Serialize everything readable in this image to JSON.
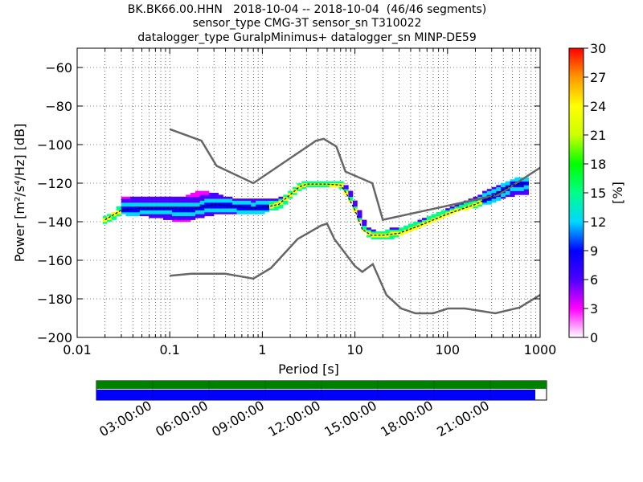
{
  "title_lines": [
    "BK.BK66.00.HHN   2018-10-04 -- 2018-10-04  (46/46 segments)",
    "sensor_type CMG-3T sensor_sn T310022",
    "datalogger_type GuralpMinimus+ datalogger_sn MINP-DE59"
  ],
  "chart_data": {
    "type": "heatmap",
    "xlabel": "Period [s]",
    "ylabel": "Power [m²/s⁴/Hz] [dB]",
    "xscale": "log",
    "xlim": [
      0.01,
      1000
    ],
    "ylim": [
      -200,
      -50
    ],
    "xticks": [
      {
        "value": 0.01,
        "label": "0.01"
      },
      {
        "value": 0.1,
        "label": "0.1"
      },
      {
        "value": 1,
        "label": "1"
      },
      {
        "value": 10,
        "label": "10"
      },
      {
        "value": 100,
        "label": "100"
      },
      {
        "value": 1000,
        "label": "1000"
      }
    ],
    "yticks": [
      {
        "value": -60,
        "label": "−60"
      },
      {
        "value": -80,
        "label": "−80"
      },
      {
        "value": -100,
        "label": "−100"
      },
      {
        "value": -120,
        "label": "−120"
      },
      {
        "value": -140,
        "label": "−140"
      },
      {
        "value": -160,
        "label": "−160"
      },
      {
        "value": -180,
        "label": "−180"
      },
      {
        "value": -200,
        "label": "−200"
      }
    ],
    "grid": true,
    "colorbar": {
      "label": "[%]",
      "range": [
        0,
        30
      ],
      "ticks": [
        0,
        3,
        6,
        9,
        12,
        15,
        18,
        21,
        24,
        27,
        30
      ],
      "colors": [
        "#ffffff",
        "#ff00ff",
        "#4b00ff",
        "#0000ff",
        "#00d8ff",
        "#00ff88",
        "#00ff00",
        "#ccff00",
        "#ffff00",
        "#ff9900",
        "#ff0000"
      ]
    },
    "noise_model_color": "#666666",
    "high_noise_model": [
      [
        0.1,
        -92
      ],
      [
        0.22,
        -98
      ],
      [
        0.32,
        -111
      ],
      [
        0.8,
        -120
      ],
      [
        3.8,
        -98
      ],
      [
        4.6,
        -97
      ],
      [
        6.3,
        -101
      ],
      [
        7.9,
        -114
      ],
      [
        15.4,
        -120
      ],
      [
        20,
        -139
      ],
      [
        354.8,
        -126
      ],
      [
        1000,
        -112
      ]
    ],
    "low_noise_model": [
      [
        0.1,
        -168
      ],
      [
        0.17,
        -167
      ],
      [
        0.4,
        -167
      ],
      [
        0.8,
        -169.5
      ],
      [
        1.24,
        -164
      ],
      [
        2.4,
        -149
      ],
      [
        4.3,
        -142
      ],
      [
        5,
        -141
      ],
      [
        6,
        -149
      ],
      [
        10,
        -163
      ],
      [
        12,
        -166
      ],
      [
        15.6,
        -162
      ],
      [
        21.9,
        -178
      ],
      [
        31.6,
        -185
      ],
      [
        45,
        -187.5
      ],
      [
        70,
        -187.5
      ],
      [
        101,
        -185
      ],
      [
        154,
        -185
      ],
      [
        328,
        -187.5
      ],
      [
        600,
        -184.5
      ],
      [
        1000,
        -178
      ]
    ],
    "mode_curve": [
      [
        0.02,
        -139
      ],
      [
        0.03,
        -134
      ],
      [
        0.05,
        -133
      ],
      [
        0.1,
        -133
      ],
      [
        0.15,
        -133.5
      ],
      [
        0.2,
        -133
      ],
      [
        0.3,
        -131
      ],
      [
        0.5,
        -132
      ],
      [
        0.8,
        -133
      ],
      [
        1.2,
        -132
      ],
      [
        1.5,
        -131
      ],
      [
        2,
        -126
      ],
      [
        2.5,
        -122
      ],
      [
        3,
        -120.5
      ],
      [
        5,
        -120.5
      ],
      [
        7,
        -121
      ],
      [
        8,
        -125
      ],
      [
        10,
        -134
      ],
      [
        12,
        -144
      ],
      [
        15,
        -147
      ],
      [
        20,
        -147
      ],
      [
        30,
        -146
      ],
      [
        50,
        -142
      ],
      [
        100,
        -136
      ],
      [
        200,
        -131
      ],
      [
        300,
        -127
      ],
      [
        500,
        -121
      ],
      [
        700,
        -120
      ]
    ],
    "psd_bands": [
      {
        "x": 0.02,
        "min": -141,
        "max": -137
      },
      {
        "x": 0.022,
        "min": -140,
        "max": -136
      },
      {
        "x": 0.025,
        "min": -139,
        "max": -135
      },
      {
        "x": 0.028,
        "min": -137,
        "max": -132
      },
      {
        "x": 0.032,
        "min": -136,
        "max": -127
      },
      {
        "x": 0.035,
        "min": -137,
        "max": -127
      },
      {
        "x": 0.04,
        "min": -137,
        "max": -127
      },
      {
        "x": 0.045,
        "min": -137,
        "max": -127
      },
      {
        "x": 0.05,
        "min": -137,
        "max": -127
      },
      {
        "x": 0.056,
        "min": -137,
        "max": -127
      },
      {
        "x": 0.063,
        "min": -138,
        "max": -127
      },
      {
        "x": 0.071,
        "min": -138,
        "max": -127
      },
      {
        "x": 0.08,
        "min": -138,
        "max": -127
      },
      {
        "x": 0.09,
        "min": -139,
        "max": -127
      },
      {
        "x": 0.1,
        "min": -139,
        "max": -127
      },
      {
        "x": 0.112,
        "min": -140,
        "max": -127
      },
      {
        "x": 0.126,
        "min": -140,
        "max": -127
      },
      {
        "x": 0.141,
        "min": -140,
        "max": -127
      },
      {
        "x": 0.158,
        "min": -140,
        "max": -126
      },
      {
        "x": 0.178,
        "min": -139,
        "max": -125
      },
      {
        "x": 0.2,
        "min": -138,
        "max": -124
      },
      {
        "x": 0.224,
        "min": -138,
        "max": -124
      },
      {
        "x": 0.25,
        "min": -137,
        "max": -124
      },
      {
        "x": 0.282,
        "min": -137,
        "max": -125
      },
      {
        "x": 0.316,
        "min": -136,
        "max": -125
      },
      {
        "x": 0.355,
        "min": -136,
        "max": -126
      },
      {
        "x": 0.4,
        "min": -136,
        "max": -127
      },
      {
        "x": 0.45,
        "min": -136,
        "max": -127
      },
      {
        "x": 0.5,
        "min": -136,
        "max": -128
      },
      {
        "x": 0.56,
        "min": -136,
        "max": -128
      },
      {
        "x": 0.63,
        "min": -136,
        "max": -128
      },
      {
        "x": 0.71,
        "min": -136,
        "max": -128
      },
      {
        "x": 0.8,
        "min": -136,
        "max": -128
      },
      {
        "x": 0.9,
        "min": -136,
        "max": -128
      },
      {
        "x": 1.0,
        "min": -136,
        "max": -128
      },
      {
        "x": 1.12,
        "min": -135,
        "max": -128
      },
      {
        "x": 1.26,
        "min": -134,
        "max": -128
      },
      {
        "x": 1.41,
        "min": -134,
        "max": -128
      },
      {
        "x": 1.58,
        "min": -133,
        "max": -127
      },
      {
        "x": 1.78,
        "min": -131,
        "max": -126
      },
      {
        "x": 2.0,
        "min": -128,
        "max": -124
      },
      {
        "x": 2.24,
        "min": -126,
        "max": -122
      },
      {
        "x": 2.5,
        "min": -124,
        "max": -120
      },
      {
        "x": 2.82,
        "min": -123,
        "max": -119
      },
      {
        "x": 3.16,
        "min": -122,
        "max": -119
      },
      {
        "x": 3.55,
        "min": -122,
        "max": -119
      },
      {
        "x": 4.0,
        "min": -122,
        "max": -119
      },
      {
        "x": 4.5,
        "min": -122,
        "max": -119
      },
      {
        "x": 5.0,
        "min": -122,
        "max": -119
      },
      {
        "x": 5.6,
        "min": -122,
        "max": -119
      },
      {
        "x": 6.3,
        "min": -122,
        "max": -119
      },
      {
        "x": 7.1,
        "min": -123,
        "max": -119
      },
      {
        "x": 8.0,
        "min": -126,
        "max": -121
      },
      {
        "x": 9.0,
        "min": -130,
        "max": -124
      },
      {
        "x": 10.0,
        "min": -135,
        "max": -129
      },
      {
        "x": 11.2,
        "min": -140,
        "max": -134
      },
      {
        "x": 12.6,
        "min": -145,
        "max": -139
      },
      {
        "x": 14.1,
        "min": -148,
        "max": -143
      },
      {
        "x": 15.8,
        "min": -149,
        "max": -144
      },
      {
        "x": 17.8,
        "min": -149,
        "max": -145
      },
      {
        "x": 20.0,
        "min": -149,
        "max": -145
      },
      {
        "x": 22.4,
        "min": -149,
        "max": -144
      },
      {
        "x": 25.0,
        "min": -149,
        "max": -143
      },
      {
        "x": 28.2,
        "min": -148,
        "max": -143
      },
      {
        "x": 31.6,
        "min": -147,
        "max": -143
      },
      {
        "x": 35.5,
        "min": -146,
        "max": -142
      },
      {
        "x": 40.0,
        "min": -145,
        "max": -141
      },
      {
        "x": 45.0,
        "min": -144,
        "max": -140
      },
      {
        "x": 50.0,
        "min": -143,
        "max": -139
      },
      {
        "x": 56.0,
        "min": -142,
        "max": -138
      },
      {
        "x": 63.0,
        "min": -141,
        "max": -137
      },
      {
        "x": 71.0,
        "min": -140,
        "max": -136
      },
      {
        "x": 80.0,
        "min": -139,
        "max": -135
      },
      {
        "x": 90.0,
        "min": -138,
        "max": -134
      },
      {
        "x": 100.0,
        "min": -137,
        "max": -133
      },
      {
        "x": 112,
        "min": -136,
        "max": -132
      },
      {
        "x": 126,
        "min": -135,
        "max": -131
      },
      {
        "x": 141,
        "min": -134,
        "max": -130
      },
      {
        "x": 158,
        "min": -134,
        "max": -129
      },
      {
        "x": 178,
        "min": -133,
        "max": -128
      },
      {
        "x": 200,
        "min": -133,
        "max": -127
      },
      {
        "x": 224,
        "min": -132,
        "max": -126
      },
      {
        "x": 251,
        "min": -131,
        "max": -124
      },
      {
        "x": 282,
        "min": -131,
        "max": -123
      },
      {
        "x": 316,
        "min": -130,
        "max": -122
      },
      {
        "x": 355,
        "min": -129,
        "max": -121
      },
      {
        "x": 398,
        "min": -128,
        "max": -120
      },
      {
        "x": 447,
        "min": -127,
        "max": -119
      },
      {
        "x": 501,
        "min": -127,
        "max": -118
      },
      {
        "x": 562,
        "min": -126,
        "max": -117
      },
      {
        "x": 631,
        "min": -126,
        "max": -117
      },
      {
        "x": 708,
        "min": -126,
        "max": -117
      }
    ]
  },
  "timeline": {
    "labels": [
      "03:00:00",
      "06:00:00",
      "09:00:00",
      "12:00:00",
      "15:00:00",
      "18:00:00",
      "21:00:00"
    ],
    "label_hours": [
      3,
      6,
      9,
      12,
      15,
      18,
      21
    ],
    "top_bar_color": "#008000",
    "bottom_bar_color": "#0000ff",
    "top_bar_coverage": 1.0,
    "bottom_bar_coverage": 0.975
  }
}
